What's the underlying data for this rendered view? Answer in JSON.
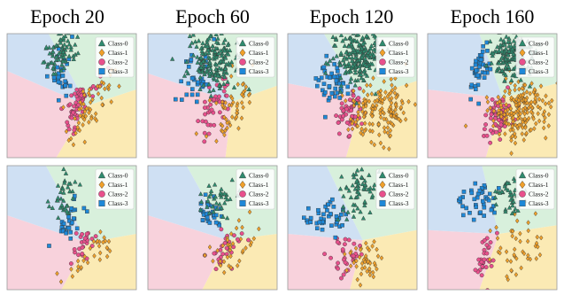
{
  "chart_data": {
    "type": "scatter",
    "column_titles": [
      "Epoch 20",
      "Epoch 60",
      "Epoch 120",
      "Epoch 160"
    ],
    "legend": [
      "Class-0",
      "Class-1",
      "Class-2",
      "Class-3"
    ],
    "grid": false,
    "legend_placement": "top-right",
    "colors": {
      "class0": "#2e8b6e",
      "class1": "#f0a02a",
      "class2": "#e8508c",
      "class3": "#1e88d8",
      "region0": "#d8f0dc",
      "region1": "#fbeab4",
      "region2": "#f8d2dc",
      "region3": "#cfe0f3",
      "edge": "#333333"
    },
    "markers": {
      "Class-0": "triangle",
      "Class-1": "diamond",
      "Class-2": "circle",
      "Class-3": "square"
    },
    "panels": [
      {
        "row": 0,
        "col": 0,
        "title": "Epoch 20",
        "regions": {
          "boundary_top": [
            0.32,
            0.0
          ],
          "boundary_left": [
            0.0,
            0.3
          ],
          "boundary_bottom": [
            0.38,
            1.0
          ],
          "boundary_right": [
            1.0,
            0.45
          ],
          "center": [
            0.62,
            0.58
          ]
        },
        "clusters": [
          {
            "class": 0,
            "n": 70,
            "cx": 0.42,
            "cy": 0.15,
            "sx": 0.06,
            "sy": 0.08,
            "rot": 0.3
          },
          {
            "class": 3,
            "n": 28,
            "cx": 0.42,
            "cy": 0.32,
            "sx": 0.05,
            "sy": 0.1,
            "rot": 0.2
          },
          {
            "class": 2,
            "n": 55,
            "cx": 0.55,
            "cy": 0.58,
            "sx": 0.04,
            "sy": 0.14,
            "rot": 0.5
          },
          {
            "class": 1,
            "n": 60,
            "cx": 0.62,
            "cy": 0.62,
            "sx": 0.05,
            "sy": 0.18,
            "rot": 0.5
          }
        ]
      },
      {
        "row": 0,
        "col": 1,
        "title": "Epoch 60",
        "regions": {
          "boundary_top": [
            0.3,
            0.0
          ],
          "boundary_left": [
            0.0,
            0.32
          ],
          "boundary_bottom": [
            0.6,
            1.0
          ],
          "boundary_right": [
            1.0,
            0.42
          ],
          "center": [
            0.65,
            0.55
          ]
        },
        "clusters": [
          {
            "class": 0,
            "n": 170,
            "cx": 0.5,
            "cy": 0.22,
            "sx": 0.1,
            "sy": 0.12,
            "rot": 0.1
          },
          {
            "class": 3,
            "n": 35,
            "cx": 0.38,
            "cy": 0.38,
            "sx": 0.05,
            "sy": 0.1,
            "rot": 0.2
          },
          {
            "class": 2,
            "n": 40,
            "cx": 0.52,
            "cy": 0.6,
            "sx": 0.05,
            "sy": 0.12,
            "rot": 0.4
          },
          {
            "class": 1,
            "n": 55,
            "cx": 0.65,
            "cy": 0.58,
            "sx": 0.07,
            "sy": 0.15,
            "rot": 0.5
          }
        ]
      },
      {
        "row": 0,
        "col": 2,
        "title": "Epoch 120",
        "regions": {
          "boundary_top": [
            0.28,
            0.0
          ],
          "boundary_left": [
            0.0,
            0.4
          ],
          "boundary_bottom": [
            0.45,
            1.0
          ],
          "boundary_right": [
            1.0,
            0.38
          ],
          "center": [
            0.58,
            0.52
          ]
        },
        "clusters": [
          {
            "class": 0,
            "n": 200,
            "cx": 0.55,
            "cy": 0.18,
            "sx": 0.09,
            "sy": 0.12,
            "rot": 0.1
          },
          {
            "class": 3,
            "n": 45,
            "cx": 0.35,
            "cy": 0.4,
            "sx": 0.06,
            "sy": 0.08,
            "rot": 0.1
          },
          {
            "class": 2,
            "n": 50,
            "cx": 0.48,
            "cy": 0.65,
            "sx": 0.05,
            "sy": 0.09,
            "rot": 0.3
          },
          {
            "class": 1,
            "n": 150,
            "cx": 0.72,
            "cy": 0.62,
            "sx": 0.12,
            "sy": 0.13,
            "rot": 0.4
          }
        ]
      },
      {
        "row": 0,
        "col": 3,
        "title": "Epoch 160",
        "regions": {
          "boundary_top": [
            0.4,
            0.0
          ],
          "boundary_left": [
            0.0,
            0.45
          ],
          "boundary_bottom": [
            0.45,
            1.0
          ],
          "boundary_right": [
            1.0,
            0.4
          ],
          "center": [
            0.58,
            0.52
          ]
        },
        "clusters": [
          {
            "class": 0,
            "n": 170,
            "cx": 0.65,
            "cy": 0.18,
            "sx": 0.08,
            "sy": 0.1,
            "rot": 0.1
          },
          {
            "class": 3,
            "n": 40,
            "cx": 0.4,
            "cy": 0.3,
            "sx": 0.04,
            "sy": 0.12,
            "rot": 0.3
          },
          {
            "class": 2,
            "n": 60,
            "cx": 0.55,
            "cy": 0.68,
            "sx": 0.05,
            "sy": 0.1,
            "rot": 0.3
          },
          {
            "class": 1,
            "n": 190,
            "cx": 0.72,
            "cy": 0.62,
            "sx": 0.12,
            "sy": 0.13,
            "rot": 0.4
          }
        ]
      },
      {
        "row": 1,
        "col": 0,
        "title": "",
        "regions": {
          "boundary_top": [
            0.3,
            0.0
          ],
          "boundary_left": [
            0.0,
            0.4
          ],
          "boundary_bottom": [
            0.42,
            1.0
          ],
          "boundary_right": [
            1.0,
            0.55
          ],
          "center": [
            0.62,
            0.62
          ]
        },
        "clusters": [
          {
            "class": 0,
            "n": 40,
            "cx": 0.45,
            "cy": 0.22,
            "sx": 0.04,
            "sy": 0.1,
            "rot": 0.3
          },
          {
            "class": 3,
            "n": 30,
            "cx": 0.48,
            "cy": 0.45,
            "sx": 0.04,
            "sy": 0.1,
            "rot": 0.3
          },
          {
            "class": 2,
            "n": 25,
            "cx": 0.58,
            "cy": 0.65,
            "sx": 0.04,
            "sy": 0.08,
            "rot": 0.5
          },
          {
            "class": 1,
            "n": 30,
            "cx": 0.65,
            "cy": 0.72,
            "sx": 0.05,
            "sy": 0.15,
            "rot": 0.7
          }
        ]
      },
      {
        "row": 1,
        "col": 1,
        "title": "",
        "regions": {
          "boundary_top": [
            0.3,
            0.0
          ],
          "boundary_left": [
            0.0,
            0.4
          ],
          "boundary_bottom": [
            0.42,
            1.0
          ],
          "boundary_right": [
            1.0,
            0.55
          ],
          "center": [
            0.62,
            0.6
          ]
        },
        "clusters": [
          {
            "class": 0,
            "n": 35,
            "cx": 0.55,
            "cy": 0.25,
            "sx": 0.07,
            "sy": 0.08,
            "rot": 0.2
          },
          {
            "class": 3,
            "n": 30,
            "cx": 0.48,
            "cy": 0.42,
            "sx": 0.05,
            "sy": 0.09,
            "rot": 0.3
          },
          {
            "class": 2,
            "n": 30,
            "cx": 0.6,
            "cy": 0.68,
            "sx": 0.05,
            "sy": 0.1,
            "rot": 0.5
          },
          {
            "class": 1,
            "n": 35,
            "cx": 0.68,
            "cy": 0.64,
            "sx": 0.07,
            "sy": 0.16,
            "rot": 0.6
          }
        ]
      },
      {
        "row": 1,
        "col": 2,
        "title": "",
        "regions": {
          "boundary_top": [
            0.3,
            0.0
          ],
          "boundary_left": [
            0.0,
            0.55
          ],
          "boundary_bottom": [
            0.48,
            1.0
          ],
          "boundary_right": [
            1.0,
            0.52
          ],
          "center": [
            0.58,
            0.6
          ]
        },
        "clusters": [
          {
            "class": 0,
            "n": 60,
            "cx": 0.55,
            "cy": 0.22,
            "sx": 0.07,
            "sy": 0.1,
            "rot": 0.1
          },
          {
            "class": 3,
            "n": 40,
            "cx": 0.3,
            "cy": 0.4,
            "sx": 0.1,
            "sy": 0.07,
            "rot": 0.2
          },
          {
            "class": 2,
            "n": 30,
            "cx": 0.45,
            "cy": 0.75,
            "sx": 0.06,
            "sy": 0.1,
            "rot": 0.3
          },
          {
            "class": 1,
            "n": 45,
            "cx": 0.6,
            "cy": 0.78,
            "sx": 0.08,
            "sy": 0.1,
            "rot": 0.4
          }
        ]
      },
      {
        "row": 1,
        "col": 3,
        "title": "",
        "regions": {
          "boundary_top": [
            0.42,
            0.0
          ],
          "boundary_left": [
            0.0,
            0.52
          ],
          "boundary_bottom": [
            0.4,
            1.0
          ],
          "boundary_right": [
            1.0,
            0.48
          ],
          "center": [
            0.55,
            0.55
          ]
        },
        "clusters": [
          {
            "class": 0,
            "n": 40,
            "cx": 0.65,
            "cy": 0.25,
            "sx": 0.06,
            "sy": 0.09,
            "rot": 0.1
          },
          {
            "class": 3,
            "n": 40,
            "cx": 0.38,
            "cy": 0.28,
            "sx": 0.1,
            "sy": 0.08,
            "rot": 0.2
          },
          {
            "class": 2,
            "n": 30,
            "cx": 0.45,
            "cy": 0.75,
            "sx": 0.04,
            "sy": 0.1,
            "rot": 0.2
          },
          {
            "class": 1,
            "n": 45,
            "cx": 0.72,
            "cy": 0.62,
            "sx": 0.1,
            "sy": 0.14,
            "rot": 0.5
          }
        ]
      }
    ]
  }
}
